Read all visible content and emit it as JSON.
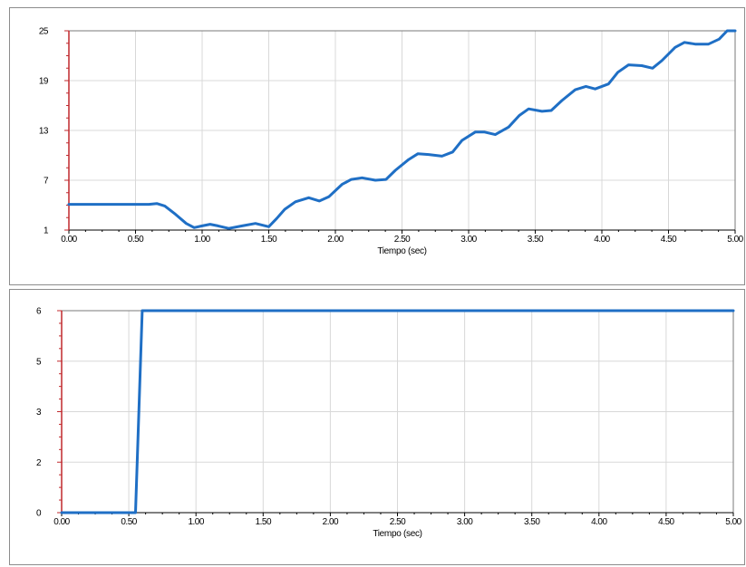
{
  "colors": {
    "series": "#1f6fc5",
    "grid": "#d8d8d8",
    "left_axis": "#c0282d",
    "frame": "#7a7a7a"
  },
  "chart_data": [
    {
      "type": "line",
      "xlabel": "Tiempo (sec)",
      "ylabel": "",
      "xlim": [
        0,
        5
      ],
      "ylim": [
        1,
        25
      ],
      "grid": true,
      "xticks": [
        "0.00",
        "0.50",
        "1.00",
        "1.50",
        "2.00",
        "2.50",
        "3.00",
        "3.50",
        "4.00",
        "4.50",
        "5.00"
      ],
      "yticks": [
        "1",
        "7",
        "13",
        "19",
        "25"
      ],
      "series": [
        {
          "x": [
            0,
            0.2,
            0.4,
            0.6,
            0.66,
            0.72,
            0.8,
            0.88,
            0.94,
            1.0,
            1.06,
            1.12,
            1.2,
            1.3,
            1.4,
            1.5,
            1.56,
            1.62,
            1.7,
            1.8,
            1.88,
            1.95,
            2.05,
            2.12,
            2.2,
            2.3,
            2.38,
            2.45,
            2.55,
            2.62,
            2.7,
            2.8,
            2.88,
            2.95,
            3.05,
            3.12,
            3.2,
            3.3,
            3.38,
            3.45,
            3.55,
            3.62,
            3.7,
            3.8,
            3.88,
            3.95,
            4.05,
            4.12,
            4.2,
            4.3,
            4.38,
            4.45,
            4.55,
            4.62,
            4.7,
            4.8,
            4.88,
            4.94,
            5.0
          ],
          "y": [
            4.1,
            4.1,
            4.1,
            4.1,
            4.2,
            3.9,
            2.9,
            1.8,
            1.3,
            1.5,
            1.7,
            1.5,
            1.2,
            1.5,
            1.8,
            1.4,
            2.4,
            3.5,
            4.4,
            4.9,
            4.5,
            5.0,
            6.5,
            7.1,
            7.3,
            7.0,
            7.1,
            8.2,
            9.5,
            10.2,
            10.1,
            9.9,
            10.4,
            11.8,
            12.8,
            12.8,
            12.5,
            13.4,
            14.8,
            15.6,
            15.3,
            15.4,
            16.6,
            17.9,
            18.3,
            18.0,
            18.6,
            20.0,
            20.9,
            20.8,
            20.5,
            21.4,
            23.0,
            23.6,
            23.4,
            23.4,
            24.0,
            25.0,
            25.0
          ]
        }
      ]
    },
    {
      "type": "line",
      "xlabel": "Tiempo (sec)",
      "ylabel": "",
      "xlim": [
        0,
        5
      ],
      "ylim": [
        0,
        6
      ],
      "grid": true,
      "xticks": [
        "0.00",
        "0.50",
        "1.00",
        "1.50",
        "2.00",
        "2.50",
        "3.00",
        "3.50",
        "4.00",
        "4.50",
        "5.00"
      ],
      "yticks": [
        "0",
        "2",
        "3",
        "5",
        "6"
      ],
      "ytick_values": [
        0,
        1.5,
        3,
        4.5,
        6
      ],
      "series": [
        {
          "x": [
            0,
            0.55,
            0.6,
            5.0
          ],
          "y": [
            0,
            0,
            6,
            6
          ]
        }
      ]
    }
  ]
}
